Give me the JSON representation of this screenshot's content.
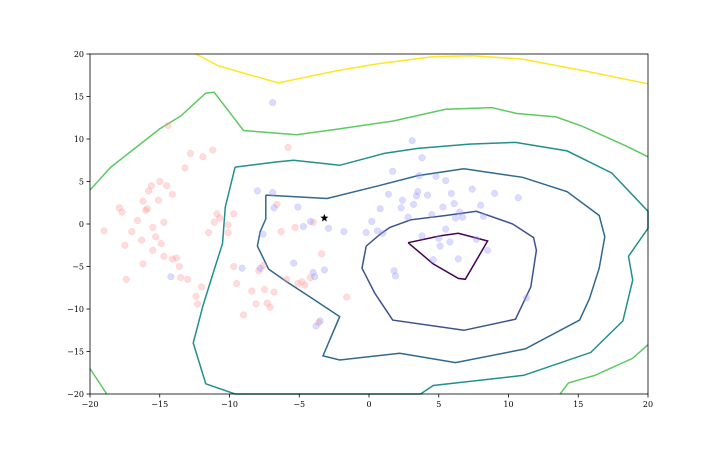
{
  "chart_data": {
    "type": "scatter",
    "title": "",
    "xlabel": "",
    "ylabel": "",
    "xlim": [
      -20,
      20
    ],
    "ylim": [
      -20,
      20
    ],
    "grid": false,
    "xticks": [
      -20,
      -15,
      -10,
      -5,
      0,
      5,
      10,
      15,
      20
    ],
    "yticks": [
      20,
      15,
      10,
      5,
      0,
      -5,
      -10,
      -15,
      -20
    ],
    "xtick_labels": [
      "−20",
      "−15",
      "−10",
      "−5",
      "0",
      "5",
      "10",
      "15",
      "20"
    ],
    "ytick_labels": [
      "20",
      "15",
      "10",
      "5",
      "0",
      "−5",
      "−10",
      "−15",
      "−20"
    ],
    "series": [
      {
        "color": "#ff9999",
        "opacity": 0.35,
        "points": [
          [
            -19.0,
            -0.8
          ],
          [
            -17.9,
            1.9
          ],
          [
            -17.7,
            1.4
          ],
          [
            -17.5,
            -2.5
          ],
          [
            -17.4,
            -6.5
          ],
          [
            -17.0,
            -0.9
          ],
          [
            -16.6,
            0.4
          ],
          [
            -16.3,
            -1.9
          ],
          [
            -16.2,
            2.7
          ],
          [
            -16.2,
            -4.7
          ],
          [
            -16.0,
            1.6
          ],
          [
            -15.9,
            1.8
          ],
          [
            -15.8,
            3.9
          ],
          [
            -15.6,
            4.5
          ],
          [
            -15.5,
            -3.1
          ],
          [
            -15.5,
            -0.4
          ],
          [
            -15.3,
            -1.5
          ],
          [
            -15.1,
            2.8
          ],
          [
            -15.0,
            5.0
          ],
          [
            -14.9,
            -2.3
          ],
          [
            -14.7,
            0.2
          ],
          [
            -14.7,
            -3.8
          ],
          [
            -14.5,
            4.5
          ],
          [
            -14.4,
            11.6
          ],
          [
            -14.1,
            -4.1
          ],
          [
            -14.1,
            3.5
          ],
          [
            -13.8,
            -4.0
          ],
          [
            -13.6,
            -5.0
          ],
          [
            -13.5,
            -6.3
          ],
          [
            -13.2,
            6.6
          ],
          [
            -13.0,
            -6.5
          ],
          [
            -12.8,
            8.3
          ],
          [
            -12.4,
            -8.5
          ],
          [
            -12.3,
            -9.4
          ],
          [
            -12.0,
            -7.4
          ],
          [
            -11.9,
            7.9
          ],
          [
            -11.5,
            -1.0
          ],
          [
            -11.2,
            8.7
          ],
          [
            -11.1,
            0.2
          ],
          [
            -10.9,
            1.2
          ],
          [
            -10.7,
            0.7
          ],
          [
            -10.1,
            -0.1
          ],
          [
            -10.1,
            -1.0
          ],
          [
            -9.7,
            1.2
          ],
          [
            -9.7,
            -5.0
          ],
          [
            -9.5,
            -7.0
          ],
          [
            -9.0,
            -10.7
          ],
          [
            -8.4,
            -7.9
          ],
          [
            -8.1,
            -9.4
          ],
          [
            -7.9,
            -5.5
          ],
          [
            -7.6,
            -4.9
          ],
          [
            -7.5,
            -7.7
          ],
          [
            -7.3,
            -9.3
          ],
          [
            -7.1,
            -9.8
          ],
          [
            -6.8,
            -8.0
          ],
          [
            -6.6,
            2.3
          ],
          [
            -6.3,
            -0.9
          ],
          [
            -5.9,
            -6.5
          ],
          [
            -5.8,
            9.0
          ],
          [
            -5.3,
            -0.4
          ],
          [
            -5.1,
            -7.0
          ],
          [
            -4.8,
            -6.8
          ],
          [
            -4.6,
            -7.2
          ],
          [
            -4.2,
            -6.3
          ],
          [
            -4.0,
            0.2
          ],
          [
            -3.6,
            -11.6
          ],
          [
            -3.4,
            -3.5
          ],
          [
            -1.6,
            -8.6
          ]
        ]
      },
      {
        "color": "#9999ff",
        "opacity": 0.35,
        "points": [
          [
            -14.2,
            -6.2
          ],
          [
            -9.1,
            -5.2
          ],
          [
            -8.0,
            3.9
          ],
          [
            -7.8,
            -5.2
          ],
          [
            -7.6,
            -1.2
          ],
          [
            -6.9,
            14.3
          ],
          [
            -6.9,
            3.7
          ],
          [
            -6.8,
            1.9
          ],
          [
            -5.4,
            -4.6
          ],
          [
            -5.1,
            2.0
          ],
          [
            -4.7,
            -0.3
          ],
          [
            -4.2,
            0.3
          ],
          [
            -4.0,
            -5.7
          ],
          [
            -3.9,
            -6.2
          ],
          [
            -3.8,
            -12.0
          ],
          [
            -3.5,
            -11.4
          ],
          [
            -3.2,
            -5.4
          ],
          [
            -2.9,
            -0.5
          ],
          [
            -1.8,
            -0.9
          ],
          [
            -0.2,
            -1.0
          ],
          [
            0.2,
            0.3
          ],
          [
            0.6,
            -0.8
          ],
          [
            0.8,
            1.8
          ],
          [
            1.0,
            -1.1
          ],
          [
            1.4,
            3.5
          ],
          [
            1.7,
            6.2
          ],
          [
            1.8,
            -5.5
          ],
          [
            1.9,
            -6.1
          ],
          [
            2.3,
            1.9
          ],
          [
            2.4,
            2.8
          ],
          [
            2.8,
            0.8
          ],
          [
            3.1,
            9.8
          ],
          [
            3.2,
            2.3
          ],
          [
            3.4,
            3.3
          ],
          [
            3.5,
            3.8
          ],
          [
            3.6,
            5.7
          ],
          [
            3.8,
            -1.4
          ],
          [
            3.8,
            7.8
          ],
          [
            4.2,
            3.4
          ],
          [
            4.5,
            1.1
          ],
          [
            4.6,
            -4.2
          ],
          [
            4.8,
            5.6
          ],
          [
            5.0,
            -1.7
          ],
          [
            5.1,
            -2.6
          ],
          [
            5.3,
            2.0
          ],
          [
            5.5,
            5.1
          ],
          [
            5.5,
            -0.6
          ],
          [
            5.8,
            -2.1
          ],
          [
            5.9,
            3.6
          ],
          [
            6.1,
            2.4
          ],
          [
            6.2,
            0.7
          ],
          [
            6.4,
            -4.1
          ],
          [
            6.5,
            1.4
          ],
          [
            6.7,
            0.8
          ],
          [
            7.4,
            4.1
          ],
          [
            7.7,
            -1.8
          ],
          [
            8.0,
            2.2
          ],
          [
            8.2,
            0.9
          ],
          [
            8.5,
            -3.1
          ],
          [
            9.0,
            3.6
          ],
          [
            10.7,
            3.1
          ],
          [
            11.3,
            -8.7
          ]
        ]
      },
      {
        "color": "#000000",
        "marker": "star",
        "points": [
          [
            -3.2,
            0.7
          ]
        ]
      }
    ],
    "contours": [
      {
        "color": "#440154",
        "points": [
          [
            2.8,
            -2.2
          ],
          [
            5.1,
            -1.4
          ],
          [
            6.4,
            -1.1
          ],
          [
            8.5,
            -2.0
          ],
          [
            6.9,
            -6.5
          ],
          [
            6.4,
            -6.4
          ],
          [
            4.6,
            -4.7
          ],
          [
            2.8,
            -2.2
          ]
        ]
      },
      {
        "color": "#3b528b",
        "points": [
          [
            0.8,
            -1.2
          ],
          [
            1.5,
            -0.4
          ],
          [
            3.0,
            0.5
          ],
          [
            5.5,
            1.0
          ],
          [
            7.7,
            1.5
          ],
          [
            10.3,
            0.0
          ],
          [
            11.8,
            -1.6
          ],
          [
            12.0,
            -3.1
          ],
          [
            11.6,
            -7.4
          ],
          [
            10.5,
            -11.2
          ],
          [
            6.8,
            -12.5
          ],
          [
            1.7,
            -11.3
          ],
          [
            0.4,
            -8.1
          ],
          [
            -0.5,
            -5.2
          ],
          [
            -0.2,
            -2.6
          ],
          [
            0.8,
            -1.2
          ]
        ]
      },
      {
        "color": "#31688e",
        "points": [
          [
            -7.4,
            3.4
          ],
          [
            -3.0,
            3.0
          ],
          [
            0.7,
            4.5
          ],
          [
            3.5,
            5.7
          ],
          [
            6.8,
            6.5
          ],
          [
            11.0,
            5.5
          ],
          [
            14.2,
            3.8
          ],
          [
            16.5,
            1.0
          ],
          [
            16.9,
            -1.5
          ],
          [
            16.5,
            -5.2
          ],
          [
            15.8,
            -8.8
          ],
          [
            15.1,
            -11.3
          ],
          [
            11.2,
            -14.7
          ],
          [
            6.2,
            -16.3
          ],
          [
            2.2,
            -15.2
          ],
          [
            -2.1,
            -16.0
          ],
          [
            -3.3,
            -15.5
          ],
          [
            -2.1,
            -10.9
          ],
          [
            -4.4,
            -8.4
          ],
          [
            -5.9,
            -6.8
          ],
          [
            -7.2,
            -5.3
          ],
          [
            -8.0,
            -2.6
          ],
          [
            -7.8,
            -0.9
          ],
          [
            -7.4,
            0.6
          ],
          [
            -7.4,
            3.4
          ]
        ]
      },
      {
        "color": "#21908d",
        "points": [
          [
            -9.6,
            6.7
          ],
          [
            -6.6,
            7.3
          ],
          [
            -5.4,
            7.5
          ],
          [
            -2.1,
            6.9
          ],
          [
            1.1,
            8.3
          ],
          [
            3.5,
            8.9
          ],
          [
            7.2,
            9.4
          ],
          [
            10.5,
            9.6
          ],
          [
            14.2,
            8.6
          ],
          [
            17.4,
            6.0
          ],
          [
            20.0,
            1.5
          ],
          [
            20.0,
            -0.5
          ],
          [
            18.6,
            -3.8
          ],
          [
            18.9,
            -6.6
          ],
          [
            18.2,
            -11.4
          ],
          [
            15.9,
            -15.1
          ],
          [
            11.1,
            -17.8
          ],
          [
            4.6,
            -19.0
          ],
          [
            3.7,
            -20.0
          ],
          [
            -9.6,
            -20.0
          ],
          [
            -11.7,
            -18.8
          ],
          [
            -12.6,
            -14.0
          ],
          [
            -11.9,
            -9.6
          ],
          [
            -11.2,
            -5.9
          ],
          [
            -10.5,
            -2.3
          ],
          [
            -10.3,
            2.0
          ],
          [
            -9.6,
            6.7
          ]
        ]
      },
      {
        "color": "#5ec962",
        "points": [
          [
            -20.0,
            4.0
          ],
          [
            -18.5,
            6.7
          ],
          [
            -15.0,
            11.2
          ],
          [
            -13.5,
            12.7
          ],
          [
            -11.7,
            15.4
          ],
          [
            -11.1,
            15.5
          ],
          [
            -9.0,
            11.0
          ],
          [
            -5.2,
            10.5
          ],
          [
            -2.5,
            11.1
          ],
          [
            1.7,
            12.1
          ],
          [
            5.5,
            13.5
          ],
          [
            8.8,
            13.7
          ],
          [
            10.6,
            13.0
          ],
          [
            13.4,
            12.6
          ],
          [
            15.3,
            11.5
          ],
          [
            18.4,
            9.2
          ],
          [
            20.0,
            7.9
          ]
        ]
      },
      {
        "color": "#5ec962",
        "points": [
          [
            -20.0,
            -17.0
          ],
          [
            -18.8,
            -20.0
          ]
        ]
      },
      {
        "color": "#5ec962",
        "points": [
          [
            20.0,
            -14.2
          ],
          [
            18.9,
            -15.8
          ],
          [
            16.2,
            -17.8
          ],
          [
            14.3,
            -18.7
          ],
          [
            13.7,
            -20.0
          ]
        ]
      },
      {
        "color": "#fde725",
        "points": [
          [
            -12.4,
            20.0
          ],
          [
            -10.8,
            18.6
          ],
          [
            -6.5,
            16.6
          ],
          [
            -2.4,
            18.0
          ],
          [
            0.4,
            18.8
          ],
          [
            4.6,
            19.7
          ],
          [
            7.4,
            19.8
          ],
          [
            11.0,
            19.4
          ],
          [
            15.5,
            18.0
          ],
          [
            20.0,
            16.5
          ]
        ]
      }
    ]
  }
}
